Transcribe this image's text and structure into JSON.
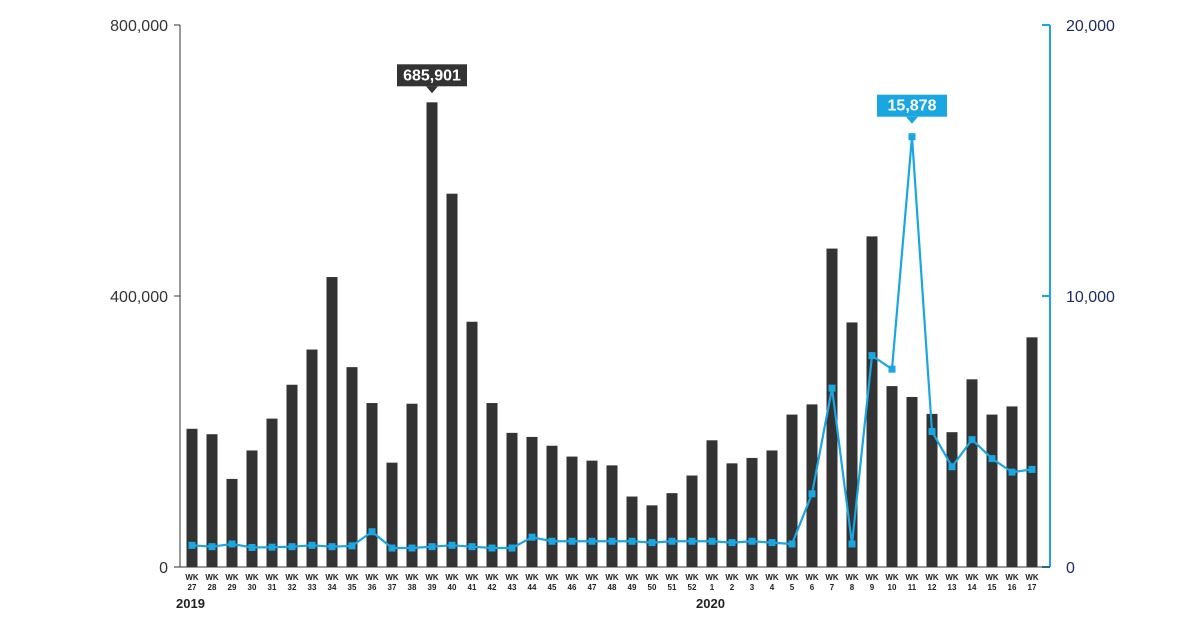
{
  "colors": {
    "bar": "#333333",
    "line": "#1aa6e0",
    "left_axis": "#333333",
    "right_axis": "#1aa6e0",
    "right_tick_text": "#1f2a6b"
  },
  "chart_data": {
    "type": "bar",
    "categories": [
      {
        "wk": "WK",
        "num": "27"
      },
      {
        "wk": "WK",
        "num": "28"
      },
      {
        "wk": "WK",
        "num": "29"
      },
      {
        "wk": "WK",
        "num": "30"
      },
      {
        "wk": "WK",
        "num": "31"
      },
      {
        "wk": "WK",
        "num": "32"
      },
      {
        "wk": "WK",
        "num": "33"
      },
      {
        "wk": "WK",
        "num": "34"
      },
      {
        "wk": "WK",
        "num": "35"
      },
      {
        "wk": "WK",
        "num": "36"
      },
      {
        "wk": "WK",
        "num": "37"
      },
      {
        "wk": "WK",
        "num": "38"
      },
      {
        "wk": "WK",
        "num": "39"
      },
      {
        "wk": "WK",
        "num": "40"
      },
      {
        "wk": "WK",
        "num": "41"
      },
      {
        "wk": "WK",
        "num": "42"
      },
      {
        "wk": "WK",
        "num": "43"
      },
      {
        "wk": "WK",
        "num": "44"
      },
      {
        "wk": "WK",
        "num": "45"
      },
      {
        "wk": "WK",
        "num": "46"
      },
      {
        "wk": "WK",
        "num": "47"
      },
      {
        "wk": "WK",
        "num": "48"
      },
      {
        "wk": "WK",
        "num": "49"
      },
      {
        "wk": "WK",
        "num": "50"
      },
      {
        "wk": "WK",
        "num": "51"
      },
      {
        "wk": "WK",
        "num": "52"
      },
      {
        "wk": "WK",
        "num": "1"
      },
      {
        "wk": "WK",
        "num": "2"
      },
      {
        "wk": "WK",
        "num": "3"
      },
      {
        "wk": "WK",
        "num": "4"
      },
      {
        "wk": "WK",
        "num": "5"
      },
      {
        "wk": "WK",
        "num": "6"
      },
      {
        "wk": "WK",
        "num": "7"
      },
      {
        "wk": "WK",
        "num": "8"
      },
      {
        "wk": "WK",
        "num": "9"
      },
      {
        "wk": "WK",
        "num": "10"
      },
      {
        "wk": "WK",
        "num": "11"
      },
      {
        "wk": "WK",
        "num": "12"
      },
      {
        "wk": "WK",
        "num": "13"
      },
      {
        "wk": "WK",
        "num": "14"
      },
      {
        "wk": "WK",
        "num": "15"
      },
      {
        "wk": "WK",
        "num": "16"
      },
      {
        "wk": "WK",
        "num": "17"
      }
    ],
    "years": [
      {
        "label": "2019",
        "start_index": 0
      },
      {
        "label": "2020",
        "start_index": 26
      }
    ],
    "series": [
      {
        "axis": "left",
        "type": "bar",
        "values": [
          204000,
          196000,
          130000,
          172000,
          219000,
          269000,
          321000,
          428000,
          295000,
          242000,
          154000,
          241000,
          685901,
          551000,
          362000,
          242000,
          198000,
          192000,
          179000,
          163000,
          157000,
          150000,
          104000,
          91000,
          109000,
          135000,
          187000,
          153000,
          161000,
          172000,
          225000,
          240000,
          470000,
          361000,
          488000,
          267000,
          251000,
          226000,
          199000,
          277000,
          225000,
          237000,
          339000
        ]
      },
      {
        "axis": "right",
        "type": "line",
        "values": [
          800,
          750,
          850,
          720,
          730,
          750,
          800,
          750,
          780,
          1300,
          700,
          700,
          750,
          800,
          750,
          700,
          700,
          1100,
          950,
          950,
          950,
          950,
          950,
          900,
          950,
          950,
          950,
          900,
          950,
          900,
          850,
          2700,
          6600,
          850,
          7800,
          7300,
          15878,
          5000,
          3700,
          4700,
          4000,
          3500,
          3600
        ]
      }
    ],
    "left_axis": {
      "ylim": [
        0,
        800000
      ],
      "ticks": [
        {
          "value": 0,
          "label": "0"
        },
        {
          "value": 400000,
          "label": "400,000"
        },
        {
          "value": 800000,
          "label": "800,000"
        }
      ]
    },
    "right_axis": {
      "ylim": [
        0,
        20000
      ],
      "ticks": [
        {
          "value": 0,
          "label": "0"
        },
        {
          "value": 10000,
          "label": "10,000"
        },
        {
          "value": 20000,
          "label": "20,000"
        }
      ]
    },
    "annotations": [
      {
        "series": 0,
        "index": 12,
        "label": "685,901"
      },
      {
        "series": 1,
        "index": 36,
        "label": "15,878"
      }
    ],
    "grid": false,
    "legend": "none"
  }
}
